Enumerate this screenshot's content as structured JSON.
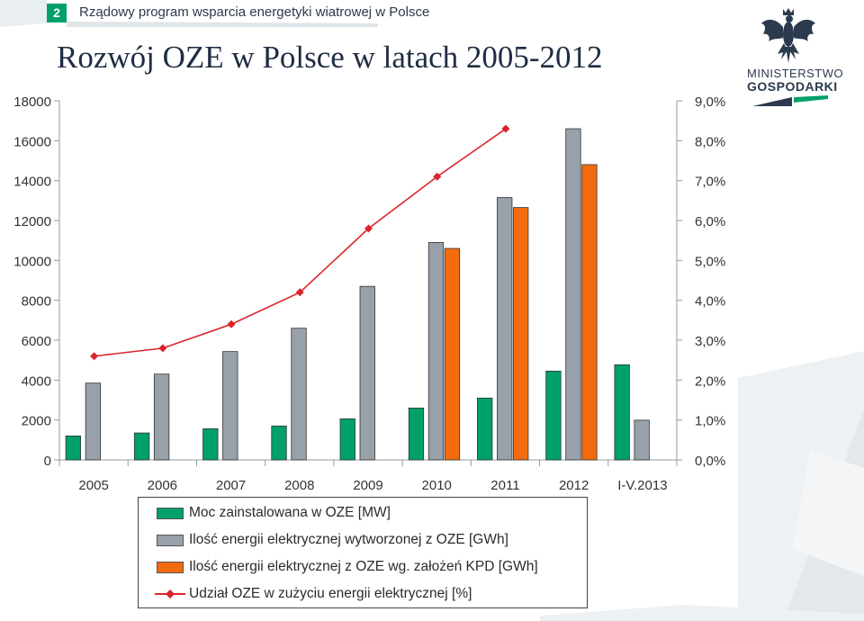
{
  "header": {
    "slide_number": "2",
    "subtitle": "Rządowy program wsparcia energetyki wiatrowej w Polsce",
    "title": "Rozwój OZE w Polsce w latach 2005-2012"
  },
  "logo": {
    "line1": "MINISTERSTWO",
    "line2": "GOSPODARKI"
  },
  "colors": {
    "green": "#00a06a",
    "gray": "#98a1aa",
    "orange": "#f26b0e",
    "red": "#d9252b",
    "dark": "#2b3a4d"
  },
  "chart_data": {
    "type": "bar",
    "title": "Rozwój OZE w Polsce w latach 2005-2012",
    "categories": [
      "2005",
      "2006",
      "2007",
      "2008",
      "2009",
      "2010",
      "2011",
      "2012",
      "I-V.2013"
    ],
    "ylim": [
      0,
      18000
    ],
    "y2lim": [
      0,
      9
    ],
    "yticks": [
      "0",
      "2000",
      "4000",
      "6000",
      "8000",
      "10000",
      "12000",
      "14000",
      "16000",
      "18000"
    ],
    "y2ticks": [
      "0,0%",
      "1,0%",
      "2,0%",
      "3,0%",
      "4,0%",
      "5,0%",
      "6,0%",
      "7,0%",
      "8,0%",
      "9,0%"
    ],
    "series": [
      {
        "name": "Moc zainstalowana w OZE [MW]",
        "kind": "bar",
        "color": "#00a06a",
        "values": [
          1200,
          1350,
          1560,
          1700,
          2060,
          2600,
          3100,
          4450,
          4770
        ]
      },
      {
        "name": "Ilość energii elektrycznej wytworzonej z OZE [GWh]",
        "kind": "bar",
        "color": "#98a1aa",
        "values": [
          3850,
          4300,
          5430,
          6600,
          8700,
          10900,
          13150,
          16600,
          1990
        ]
      },
      {
        "name": "Ilość energii elektrycznej z OZE wg. założeń KPD [GWh]",
        "kind": "bar",
        "color": "#f26b0e",
        "values": [
          null,
          null,
          null,
          null,
          null,
          10600,
          12650,
          14800,
          null
        ]
      },
      {
        "name": "Udział OZE w zużyciu energii elektrycznej [%]",
        "kind": "line",
        "axis": "right",
        "color": "#d9252b",
        "values": [
          2.6,
          2.8,
          3.4,
          4.2,
          5.8,
          7.1,
          8.3,
          null,
          null
        ]
      }
    ],
    "legend_position": "bottom"
  }
}
